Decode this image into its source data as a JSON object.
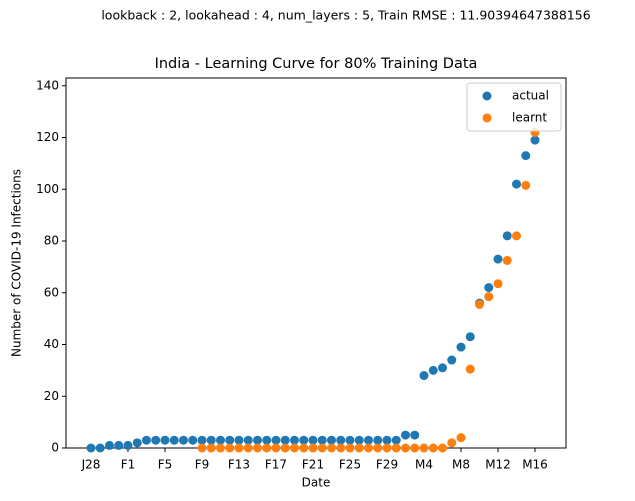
{
  "chart_data": {
    "type": "scatter",
    "suptitle": "lookback : 2, lookahead : 4, num_layers : 5, Train RMSE : 11.90394647388156",
    "title": "India - Learning Curve for 80% Training Data",
    "xlabel": "Date",
    "ylabel": "Number of COVID-19 Infections",
    "categories": [
      "J28",
      null,
      null,
      null,
      "F1",
      null,
      null,
      null,
      "F5",
      null,
      null,
      null,
      "F9",
      null,
      null,
      null,
      "F13",
      null,
      null,
      null,
      "F17",
      null,
      null,
      null,
      "F21",
      null,
      null,
      null,
      "F25",
      null,
      null,
      null,
      "F29",
      null,
      null,
      null,
      "M4",
      null,
      null,
      null,
      "M8",
      null,
      null,
      null,
      "M12",
      null,
      null,
      null,
      "M16"
    ],
    "xlim": [
      -2.7,
      51.35
    ],
    "ylim": [
      0,
      143
    ],
    "yticks": [
      0,
      20,
      40,
      60,
      80,
      100,
      120,
      140
    ],
    "legend": "upper right",
    "series": [
      {
        "name": "actual",
        "color": "#1f77b4",
        "values": [
          0,
          0,
          1,
          1,
          1,
          2,
          3,
          3,
          3,
          3,
          3,
          3,
          3,
          3,
          3,
          3,
          3,
          3,
          3,
          3,
          3,
          3,
          3,
          3,
          3,
          3,
          3,
          3,
          3,
          3,
          3,
          3,
          3,
          3,
          5,
          5,
          28,
          30,
          31,
          34,
          39,
          43,
          56,
          62,
          73,
          82,
          102,
          113,
          119
        ]
      },
      {
        "name": "learnt",
        "color": "#ff7f0e",
        "values": [
          null,
          null,
          null,
          null,
          null,
          null,
          null,
          null,
          null,
          null,
          null,
          null,
          0,
          0,
          0,
          0,
          0,
          0,
          0,
          0,
          0,
          0,
          0,
          0,
          0,
          0,
          0,
          0,
          0,
          0,
          0,
          0,
          0,
          0,
          0,
          0,
          0,
          0,
          0,
          2,
          4,
          30.5,
          55.5,
          58.5,
          63.5,
          72.5,
          82,
          101.5,
          122
        ]
      }
    ]
  }
}
